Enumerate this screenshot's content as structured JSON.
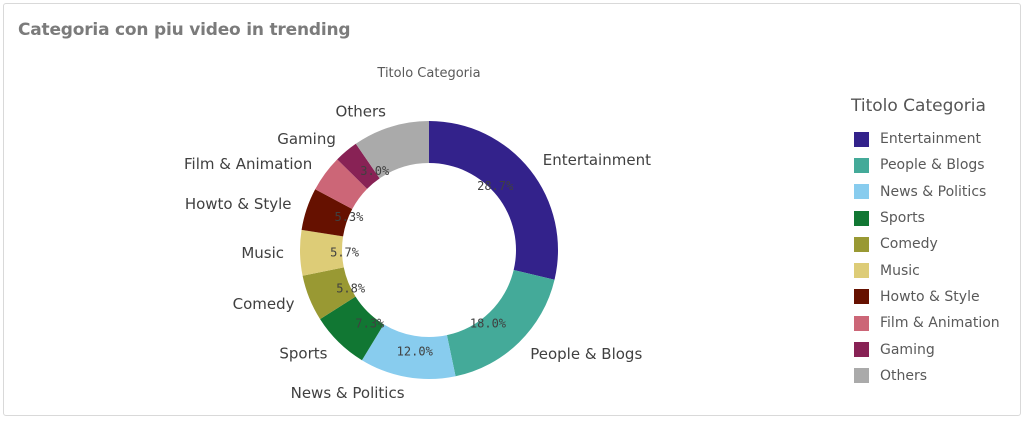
{
  "card": {
    "title": "Categoria con piu video in trending"
  },
  "chart_data": {
    "type": "pie",
    "variant": "donut",
    "title": "Titolo Categoria",
    "legend": {
      "title": "Titolo Categoria",
      "placement": "right"
    },
    "categories": [
      "Entertainment",
      "People & Blogs",
      "News & Politics",
      "Sports",
      "Comedy",
      "Music",
      "Howto & Style",
      "Film & Animation",
      "Gaming",
      "Others"
    ],
    "values": [
      28.7,
      18.0,
      12.0,
      7.3,
      5.8,
      5.7,
      5.3,
      4.6,
      3.0,
      9.6
    ],
    "value_labels": [
      "28.7%",
      "18.0%",
      "12.0%",
      "7.3%",
      "5.8%",
      "5.7%",
      "5.3%",
      "",
      "3.0%",
      ""
    ],
    "colors": [
      "#33228b",
      "#44aa99",
      "#88ccee",
      "#117733",
      "#999933",
      "#ddcc77",
      "#661100",
      "#cc6677",
      "#882255",
      "#aaaaaa"
    ]
  }
}
